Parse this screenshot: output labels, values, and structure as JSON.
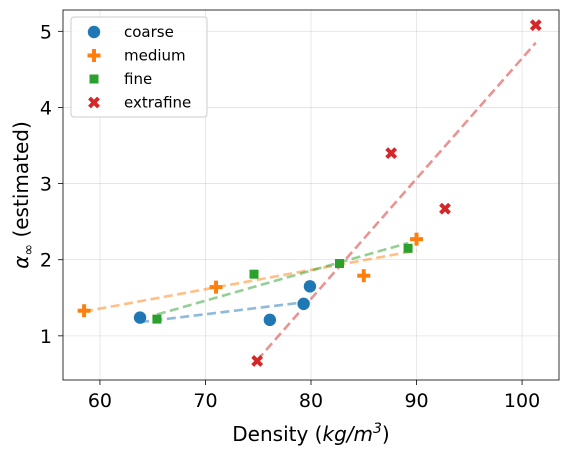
{
  "chart_data": {
    "type": "scatter",
    "xlabel": "Density (kg/m^3)",
    "ylabel": "α∞ (estimated)",
    "xlim": [
      56.5,
      103.5
    ],
    "ylim": [
      0.42,
      5.28
    ],
    "x_ticks": [
      60,
      70,
      80,
      90,
      100
    ],
    "y_ticks": [
      1,
      2,
      3,
      4,
      5
    ],
    "grid": true,
    "legend_position": "top-left",
    "series": [
      {
        "name": "coarse",
        "marker": "circle",
        "color": "#1f77b4",
        "x": [
          63.8,
          76.1,
          79.3,
          79.9
        ],
        "y": [
          1.24,
          1.21,
          1.42,
          1.65
        ],
        "fit": {
          "x": [
            63.8,
            79.9
          ],
          "y": [
            1.18,
            1.45
          ]
        }
      },
      {
        "name": "medium",
        "marker": "plus",
        "color": "#ff7f0e",
        "x": [
          58.5,
          71.0,
          85.0,
          90.0
        ],
        "y": [
          1.33,
          1.64,
          1.79,
          2.27
        ],
        "fit": {
          "x": [
            58.5,
            90.0
          ],
          "y": [
            1.32,
            2.12
          ]
        }
      },
      {
        "name": "fine",
        "marker": "square",
        "color": "#2ca02c",
        "x": [
          65.4,
          74.6,
          82.7,
          89.2
        ],
        "y": [
          1.22,
          1.81,
          1.95,
          2.15
        ],
        "fit": {
          "x": [
            65.4,
            89.2
          ],
          "y": [
            1.28,
            2.22
          ]
        }
      },
      {
        "name": "extrafine",
        "marker": "x",
        "color": "#d62728",
        "x": [
          74.9,
          87.6,
          92.7,
          101.3
        ],
        "y": [
          0.67,
          3.4,
          2.67,
          5.08
        ],
        "fit": {
          "x": [
            74.9,
            101.3
          ],
          "y": [
            0.68,
            4.85
          ]
        }
      }
    ]
  }
}
